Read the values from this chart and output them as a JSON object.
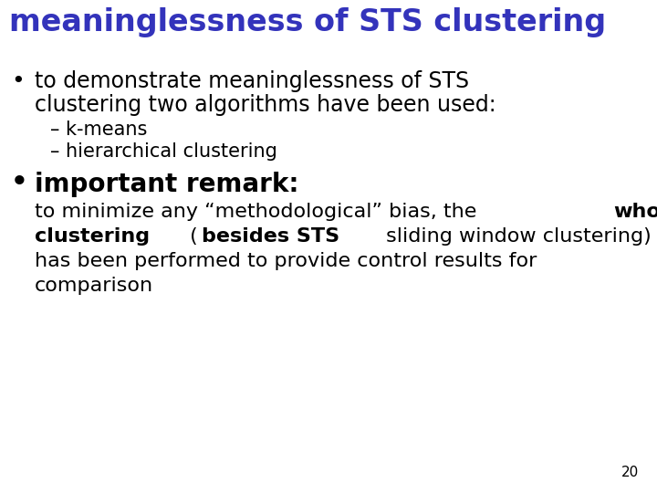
{
  "title": "meaninglessness of STS clustering",
  "title_color": "#3333BB",
  "title_fontsize": 24,
  "background_color": "#FFFFFF",
  "page_number": "20",
  "bullet1_line1": "to demonstrate meaninglessness of STS",
  "bullet1_line2": "clustering two algorithms have been used:",
  "bullet1_fontsize": 17,
  "bullet1_color": "#000000",
  "sub1": "– k-means",
  "sub2": "– hierarchical clustering",
  "sub_fontsize": 15,
  "sub_color": "#000000",
  "bullet2_label": "important remark",
  "bullet2_colon": ":",
  "bullet2_fontsize": 20,
  "body_fontsize": 16,
  "body_color": "#000000",
  "body_line1_pre": "to minimize any “methodological” bias, the ",
  "body_line1_bold": "whole",
  "body_line2_bold1": "clustering",
  "body_line2_mid": " (",
  "body_line2_bold2": "besides STS",
  "body_line2_post": " sliding window clustering)",
  "body_line3": "has been performed to provide control results for",
  "body_line4": "comparison"
}
